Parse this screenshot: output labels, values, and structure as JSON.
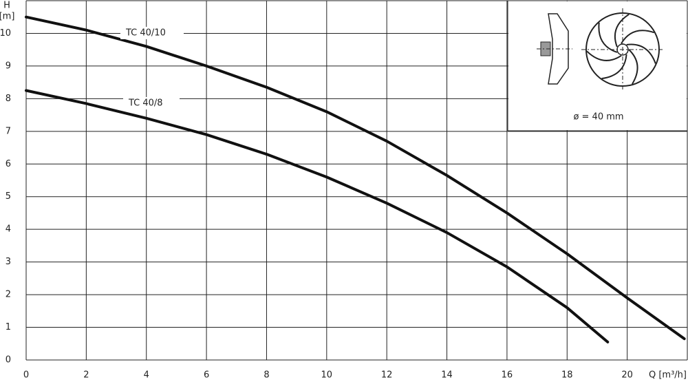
{
  "chart_data": {
    "type": "line",
    "y_label": "H",
    "y_unit": "[m]",
    "x_label": "Q [m³/h]",
    "xlim": [
      0,
      22
    ],
    "ylim": [
      0,
      11
    ],
    "xticks": [
      0,
      2,
      4,
      6,
      8,
      10,
      12,
      14,
      16,
      18,
      20
    ],
    "yticks": [
      0,
      1,
      2,
      3,
      4,
      5,
      6,
      7,
      8,
      9,
      10
    ],
    "grid": true,
    "series": [
      {
        "name": "TC 40/10",
        "color": "#111111",
        "x": [
          0,
          2,
          4,
          6,
          8,
          10,
          12,
          14,
          16,
          18,
          20,
          21.9
        ],
        "values": [
          10.5,
          10.1,
          9.6,
          9.0,
          8.35,
          7.6,
          6.7,
          5.65,
          4.5,
          3.25,
          1.9,
          0.65
        ]
      },
      {
        "name": "TC 40/8",
        "color": "#111111",
        "x": [
          0,
          2,
          4,
          6,
          8,
          10,
          12,
          14,
          16,
          18,
          19.35
        ],
        "values": [
          8.25,
          7.85,
          7.4,
          6.9,
          6.3,
          5.6,
          4.8,
          3.9,
          2.85,
          1.6,
          0.55
        ]
      }
    ],
    "annotation": "ø = 40 mm"
  }
}
